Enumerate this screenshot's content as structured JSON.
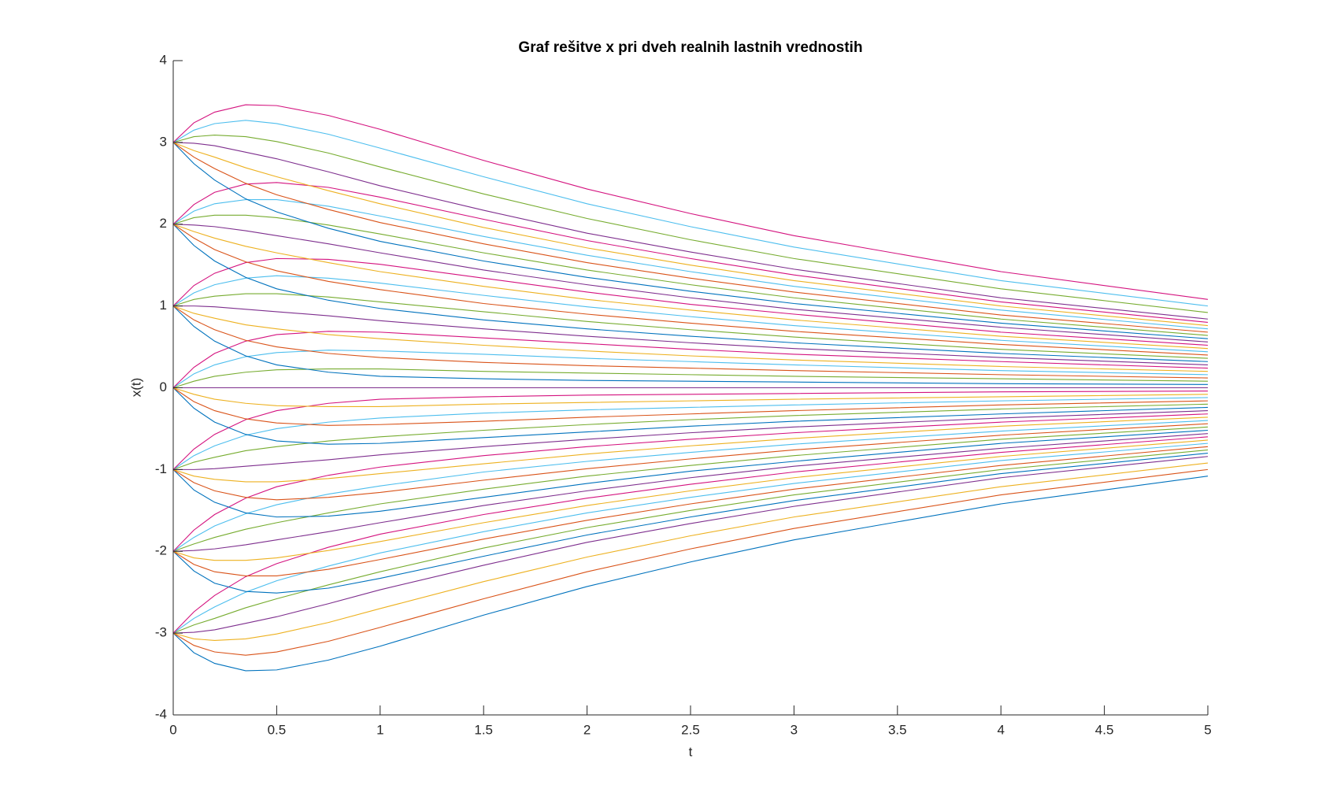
{
  "chart_data": {
    "type": "line",
    "title": "Graf rešitve x pri dveh realnih lastnih vrednostih",
    "xlabel": "t",
    "ylabel": "x(t)",
    "x": [
      0,
      0.1,
      0.2,
      0.35,
      0.5,
      0.75,
      1,
      1.5,
      2,
      2.5,
      3,
      4,
      5
    ],
    "xlim": [
      0,
      5
    ],
    "ylim": [
      -4,
      4
    ],
    "xticks": [
      0,
      0.5,
      1,
      1.5,
      2,
      2.5,
      3,
      3.5,
      4,
      4.5,
      5
    ],
    "yticks": [
      -4,
      -3,
      -2,
      -1,
      0,
      1,
      2,
      3,
      4
    ],
    "grid": false,
    "series": [
      {
        "color": "#0072BD",
        "values": [
          -3,
          -3.24,
          -3.37,
          -3.46,
          -3.45,
          -3.33,
          -3.16,
          -2.78,
          -2.43,
          -2.13,
          -1.86,
          -1.42,
          -1.08
        ]
      },
      {
        "color": "#D95319",
        "values": [
          -3,
          -3.15,
          -3.23,
          -3.27,
          -3.23,
          -3.1,
          -2.93,
          -2.58,
          -2.25,
          -1.97,
          -1.72,
          -1.31,
          -1
        ]
      },
      {
        "color": "#EDB120",
        "values": [
          -3,
          -3.07,
          -3.09,
          -3.07,
          -3.01,
          -2.87,
          -2.7,
          -2.37,
          -2.07,
          -1.81,
          -1.58,
          -1.21,
          -0.92
        ]
      },
      {
        "color": "#7E2F8E",
        "values": [
          -3,
          -2.99,
          -2.96,
          -2.88,
          -2.8,
          -2.64,
          -2.47,
          -2.17,
          -1.89,
          -1.66,
          -1.45,
          -1.1,
          -0.84
        ]
      },
      {
        "color": "#77AC30",
        "values": [
          -3,
          -2.9,
          -2.82,
          -2.69,
          -2.58,
          -2.41,
          -2.25,
          -1.96,
          -1.71,
          -1.5,
          -1.31,
          -1,
          -0.76
        ]
      },
      {
        "color": "#4DBEEE",
        "values": [
          -3,
          -2.82,
          -2.68,
          -2.5,
          -2.36,
          -2.18,
          -2.02,
          -1.76,
          -1.53,
          -1.34,
          -1.17,
          -0.89,
          -0.68
        ]
      },
      {
        "color": "#D4137F",
        "values": [
          -3,
          -2.74,
          -2.54,
          -2.31,
          -2.15,
          -1.95,
          -1.79,
          -1.55,
          -1.35,
          -1.18,
          -1.03,
          -0.79,
          -0.6
        ]
      },
      {
        "color": "#0072BD",
        "values": [
          -2,
          -2.24,
          -2.39,
          -2.49,
          -2.51,
          -2.45,
          -2.33,
          -2.06,
          -1.8,
          -1.58,
          -1.38,
          -1.05,
          -0.8
        ]
      },
      {
        "color": "#D95319",
        "values": [
          -2,
          -2.16,
          -2.25,
          -2.3,
          -2.3,
          -2.22,
          -2.1,
          -1.85,
          -1.62,
          -1.42,
          -1.24,
          -0.95,
          -0.72
        ]
      },
      {
        "color": "#EDB120",
        "values": [
          -2,
          -2.08,
          -2.11,
          -2.11,
          -2.08,
          -1.99,
          -1.88,
          -1.65,
          -1.44,
          -1.26,
          -1.1,
          -0.84,
          -0.64
        ]
      },
      {
        "color": "#7E2F8E",
        "values": [
          -2,
          -1.99,
          -1.97,
          -1.92,
          -1.86,
          -1.76,
          -1.65,
          -1.44,
          -1.26,
          -1.1,
          -0.96,
          -0.74,
          -0.56
        ]
      },
      {
        "color": "#77AC30",
        "values": [
          -2,
          -1.91,
          -1.83,
          -1.73,
          -1.65,
          -1.53,
          -1.42,
          -1.24,
          -1.08,
          -0.95,
          -0.83,
          -0.63,
          -0.48
        ]
      },
      {
        "color": "#4DBEEE",
        "values": [
          -2,
          -1.83,
          -1.69,
          -1.54,
          -1.43,
          -1.3,
          -1.2,
          -1.03,
          -0.9,
          -0.79,
          -0.69,
          -0.53,
          -0.4
        ]
      },
      {
        "color": "#D4137F",
        "values": [
          -2,
          -1.74,
          -1.55,
          -1.35,
          -1.21,
          -1.07,
          -0.97,
          -0.83,
          -0.72,
          -0.63,
          -0.55,
          -0.42,
          -0.32
        ]
      },
      {
        "color": "#0072BD",
        "values": [
          -1,
          -1.25,
          -1.4,
          -1.53,
          -1.58,
          -1.57,
          -1.51,
          -1.34,
          -1.17,
          -1.02,
          -0.9,
          -0.68,
          -0.52
        ]
      },
      {
        "color": "#D95319",
        "values": [
          -1,
          -1.16,
          -1.26,
          -1.34,
          -1.37,
          -1.34,
          -1.28,
          -1.13,
          -0.99,
          -0.87,
          -0.76,
          -0.58,
          -0.44
        ]
      },
      {
        "color": "#EDB120",
        "values": [
          -1,
          -1.08,
          -1.12,
          -1.15,
          -1.15,
          -1.11,
          -1.05,
          -0.93,
          -0.81,
          -0.71,
          -0.62,
          -0.47,
          -0.36
        ]
      },
      {
        "color": "#7E2F8E",
        "values": [
          -1,
          -1,
          -0.99,
          -0.96,
          -0.93,
          -0.88,
          -0.82,
          -0.72,
          -0.63,
          -0.55,
          -0.48,
          -0.37,
          -0.28
        ]
      },
      {
        "color": "#77AC30",
        "values": [
          -1,
          -0.91,
          -0.85,
          -0.77,
          -0.72,
          -0.65,
          -0.6,
          -0.52,
          -0.45,
          -0.39,
          -0.34,
          -0.26,
          -0.2
        ]
      },
      {
        "color": "#4DBEEE",
        "values": [
          -1,
          -0.83,
          -0.71,
          -0.58,
          -0.5,
          -0.42,
          -0.37,
          -0.31,
          -0.27,
          -0.24,
          -0.21,
          -0.16,
          -0.12
        ]
      },
      {
        "color": "#D4137F",
        "values": [
          -1,
          -0.75,
          -0.57,
          -0.39,
          -0.28,
          -0.19,
          -0.14,
          -0.11,
          -0.09,
          -0.08,
          -0.07,
          -0.05,
          -0.04
        ]
      },
      {
        "color": "#0072BD",
        "values": [
          0,
          -0.25,
          -0.42,
          -0.57,
          -0.65,
          -0.69,
          -0.68,
          -0.61,
          -0.54,
          -0.47,
          -0.41,
          -0.32,
          -0.24
        ]
      },
      {
        "color": "#D95319",
        "values": [
          0,
          -0.17,
          -0.28,
          -0.38,
          -0.43,
          -0.46,
          -0.45,
          -0.41,
          -0.36,
          -0.32,
          -0.28,
          -0.21,
          -0.16
        ]
      },
      {
        "color": "#EDB120",
        "values": [
          0,
          -0.08,
          -0.14,
          -0.19,
          -0.22,
          -0.23,
          -0.23,
          -0.2,
          -0.18,
          -0.16,
          -0.14,
          -0.11,
          -0.08
        ]
      },
      {
        "color": "#7E2F8E",
        "values": [
          0,
          0,
          0,
          0,
          0,
          0,
          0,
          0,
          0,
          0,
          0,
          0,
          0
        ]
      },
      {
        "color": "#77AC30",
        "values": [
          0,
          0.08,
          0.14,
          0.19,
          0.22,
          0.23,
          0.23,
          0.2,
          0.18,
          0.16,
          0.14,
          0.11,
          0.08
        ]
      },
      {
        "color": "#4DBEEE",
        "values": [
          0,
          0.17,
          0.28,
          0.38,
          0.43,
          0.46,
          0.45,
          0.41,
          0.36,
          0.32,
          0.28,
          0.21,
          0.16
        ]
      },
      {
        "color": "#D4137F",
        "values": [
          0,
          0.25,
          0.42,
          0.57,
          0.65,
          0.69,
          0.68,
          0.61,
          0.54,
          0.47,
          0.41,
          0.32,
          0.24
        ]
      },
      {
        "color": "#0072BD",
        "values": [
          1,
          0.75,
          0.57,
          0.39,
          0.28,
          0.19,
          0.14,
          0.11,
          0.09,
          0.08,
          0.07,
          0.05,
          0.04
        ]
      },
      {
        "color": "#D95319",
        "values": [
          1,
          0.83,
          0.71,
          0.58,
          0.5,
          0.42,
          0.37,
          0.31,
          0.27,
          0.24,
          0.21,
          0.16,
          0.12
        ]
      },
      {
        "color": "#EDB120",
        "values": [
          1,
          0.91,
          0.85,
          0.77,
          0.72,
          0.65,
          0.6,
          0.52,
          0.45,
          0.39,
          0.34,
          0.26,
          0.2
        ]
      },
      {
        "color": "#7E2F8E",
        "values": [
          1,
          1,
          0.99,
          0.96,
          0.93,
          0.88,
          0.82,
          0.72,
          0.63,
          0.55,
          0.48,
          0.37,
          0.28
        ]
      },
      {
        "color": "#77AC30",
        "values": [
          1,
          1.08,
          1.12,
          1.15,
          1.15,
          1.11,
          1.05,
          0.93,
          0.81,
          0.71,
          0.62,
          0.47,
          0.36
        ]
      },
      {
        "color": "#4DBEEE",
        "values": [
          1,
          1.16,
          1.26,
          1.34,
          1.37,
          1.34,
          1.28,
          1.13,
          0.99,
          0.87,
          0.76,
          0.58,
          0.44
        ]
      },
      {
        "color": "#D4137F",
        "values": [
          1,
          1.25,
          1.4,
          1.53,
          1.58,
          1.57,
          1.51,
          1.34,
          1.17,
          1.02,
          0.9,
          0.68,
          0.52
        ]
      },
      {
        "color": "#0072BD",
        "values": [
          2,
          1.74,
          1.55,
          1.35,
          1.21,
          1.07,
          0.97,
          0.83,
          0.72,
          0.63,
          0.55,
          0.42,
          0.32
        ]
      },
      {
        "color": "#D95319",
        "values": [
          2,
          1.83,
          1.69,
          1.54,
          1.43,
          1.3,
          1.2,
          1.03,
          0.9,
          0.79,
          0.69,
          0.53,
          0.4
        ]
      },
      {
        "color": "#EDB120",
        "values": [
          2,
          1.91,
          1.83,
          1.73,
          1.65,
          1.53,
          1.42,
          1.24,
          1.08,
          0.95,
          0.83,
          0.63,
          0.48
        ]
      },
      {
        "color": "#7E2F8E",
        "values": [
          2,
          1.99,
          1.97,
          1.92,
          1.86,
          1.76,
          1.65,
          1.44,
          1.26,
          1.1,
          0.96,
          0.74,
          0.56
        ]
      },
      {
        "color": "#77AC30",
        "values": [
          2,
          2.08,
          2.11,
          2.11,
          2.08,
          1.99,
          1.88,
          1.65,
          1.44,
          1.26,
          1.1,
          0.84,
          0.64
        ]
      },
      {
        "color": "#4DBEEE",
        "values": [
          2,
          2.16,
          2.25,
          2.3,
          2.3,
          2.22,
          2.1,
          1.85,
          1.62,
          1.42,
          1.24,
          0.95,
          0.72
        ]
      },
      {
        "color": "#D4137F",
        "values": [
          2,
          2.24,
          2.39,
          2.49,
          2.51,
          2.45,
          2.33,
          2.06,
          1.8,
          1.58,
          1.38,
          1.05,
          0.8
        ]
      },
      {
        "color": "#0072BD",
        "values": [
          3,
          2.74,
          2.54,
          2.31,
          2.15,
          1.95,
          1.79,
          1.55,
          1.35,
          1.18,
          1.03,
          0.79,
          0.6
        ]
      },
      {
        "color": "#D95319",
        "values": [
          3,
          2.82,
          2.68,
          2.5,
          2.36,
          2.18,
          2.02,
          1.76,
          1.53,
          1.34,
          1.17,
          0.89,
          0.68
        ]
      },
      {
        "color": "#EDB120",
        "values": [
          3,
          2.9,
          2.82,
          2.69,
          2.58,
          2.41,
          2.25,
          1.96,
          1.71,
          1.5,
          1.31,
          1,
          0.76
        ]
      },
      {
        "color": "#7E2F8E",
        "values": [
          3,
          2.99,
          2.96,
          2.88,
          2.8,
          2.64,
          2.47,
          2.17,
          1.89,
          1.66,
          1.45,
          1.1,
          0.84
        ]
      },
      {
        "color": "#77AC30",
        "values": [
          3,
          3.07,
          3.09,
          3.07,
          3.01,
          2.87,
          2.7,
          2.37,
          2.07,
          1.81,
          1.58,
          1.21,
          0.92
        ]
      },
      {
        "color": "#4DBEEE",
        "values": [
          3,
          3.15,
          3.23,
          3.27,
          3.23,
          3.1,
          2.93,
          2.58,
          2.25,
          1.97,
          1.72,
          1.31,
          1
        ]
      },
      {
        "color": "#D4137F",
        "values": [
          3,
          3.24,
          3.37,
          3.46,
          3.45,
          3.33,
          3.16,
          2.78,
          2.43,
          2.13,
          1.86,
          1.42,
          1.08
        ]
      }
    ]
  }
}
